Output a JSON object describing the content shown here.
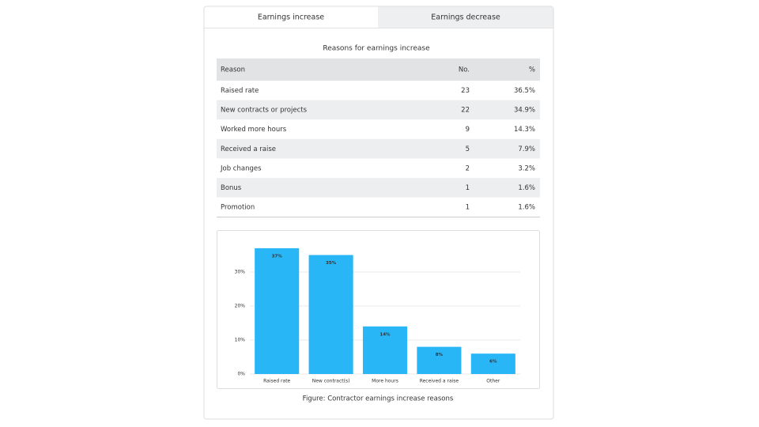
{
  "tabs": [
    "Earnings increase",
    "Earnings decrease"
  ],
  "table": {
    "title": "Reasons for earnings increase",
    "columns": [
      "Reason",
      "No.",
      "%"
    ],
    "rows": [
      [
        "Raised rate",
        23,
        "36.5%"
      ],
      [
        "New contracts or projects",
        22,
        "34.9%"
      ],
      [
        "Worked more hours",
        9,
        "14.3%"
      ],
      [
        "Received a raise",
        5,
        "7.9%"
      ],
      [
        "Job changes",
        2,
        "3.2%"
      ],
      [
        "Bonus",
        1,
        "1.6%"
      ],
      [
        "Promotion",
        1,
        "1.6%"
      ]
    ]
  },
  "chart_data": {
    "type": "bar",
    "categories": [
      "Raised rate",
      "New contract(s)",
      "More hours",
      "Received a raise",
      "Other"
    ],
    "values": [
      37,
      35,
      14,
      8,
      6
    ],
    "value_labels": [
      "37%",
      "35%",
      "14%",
      "8%",
      "6%"
    ],
    "color": "#29b6f6",
    "ylim": [
      0,
      40
    ],
    "yticks": [
      {
        "value": 0,
        "label": "0%"
      },
      {
        "value": 10,
        "label": "10%"
      },
      {
        "value": 20,
        "label": "20%"
      },
      {
        "value": 30,
        "label": "30%"
      }
    ],
    "grid": true
  },
  "caption": "Figure: Contractor earnings increase reasons"
}
